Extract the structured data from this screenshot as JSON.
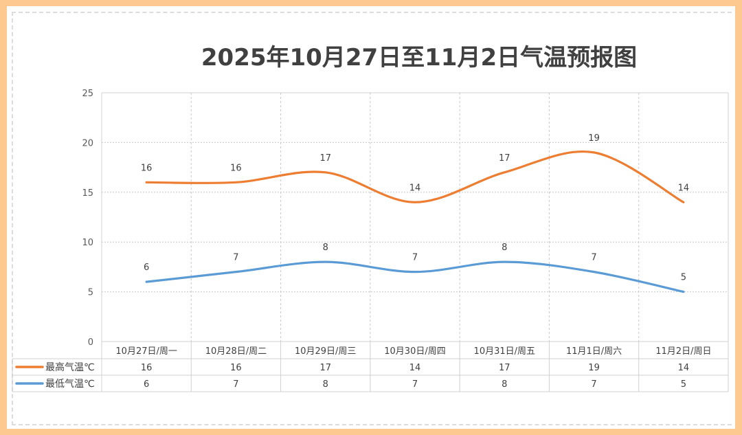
{
  "chart_data": {
    "type": "line",
    "title": "2025年10月27日至11月2日气温预报图",
    "categories": [
      "10月27日/周一",
      "10月28日/周二",
      "10月29日/周三",
      "10月30日/周四",
      "10月31日/周五",
      "11月1日/周六",
      "11月2日/周日"
    ],
    "series": [
      {
        "name": "最高气温℃",
        "color": "#ed7d31",
        "values": [
          16,
          16,
          17,
          14,
          17,
          19,
          14
        ]
      },
      {
        "name": "最低气温℃",
        "color": "#5b9bd5",
        "values": [
          6,
          7,
          8,
          7,
          8,
          7,
          5
        ]
      }
    ],
    "ylim": [
      0,
      25
    ],
    "yticks": [
      0,
      5,
      10,
      15,
      20,
      25
    ],
    "grid": true,
    "legend": "data-table-left",
    "smooth": true
  }
}
